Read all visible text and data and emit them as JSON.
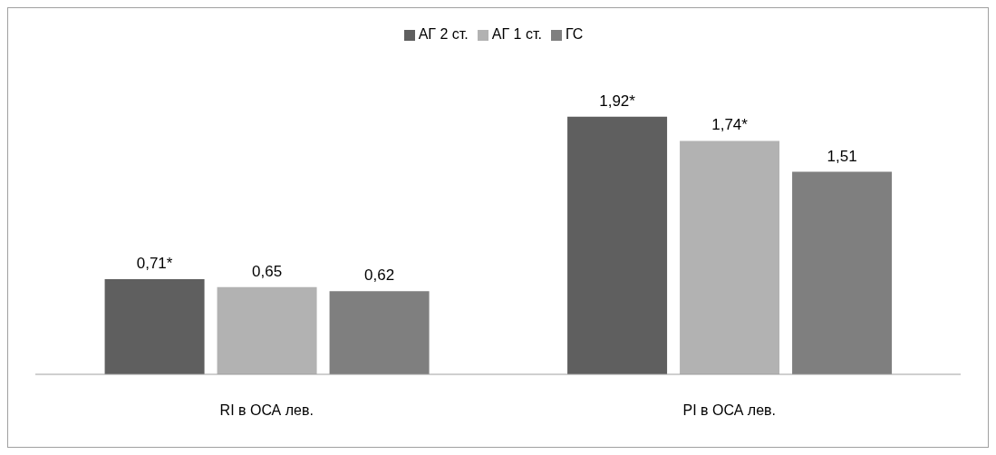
{
  "chart_data": {
    "type": "bar",
    "categories": [
      "RI в ОСА лев.",
      "PI в ОСА лев."
    ],
    "series": [
      {
        "name": "АГ 2 ст.",
        "color": "#5f5f5f",
        "values": [
          0.71,
          1.92
        ],
        "value_labels": [
          "0,71*",
          "1,92*"
        ]
      },
      {
        "name": "АГ 1 ст.",
        "color": "#b2b2b2",
        "values": [
          0.65,
          1.74
        ],
        "value_labels": [
          "0,65",
          "1,74*"
        ]
      },
      {
        "name": "ГС",
        "color": "#7f7f7f",
        "values": [
          0.62,
          1.51
        ],
        "value_labels": [
          "0,62",
          "1,51"
        ]
      }
    ],
    "grid": false,
    "legend": "top",
    "tick_labels": "x"
  }
}
